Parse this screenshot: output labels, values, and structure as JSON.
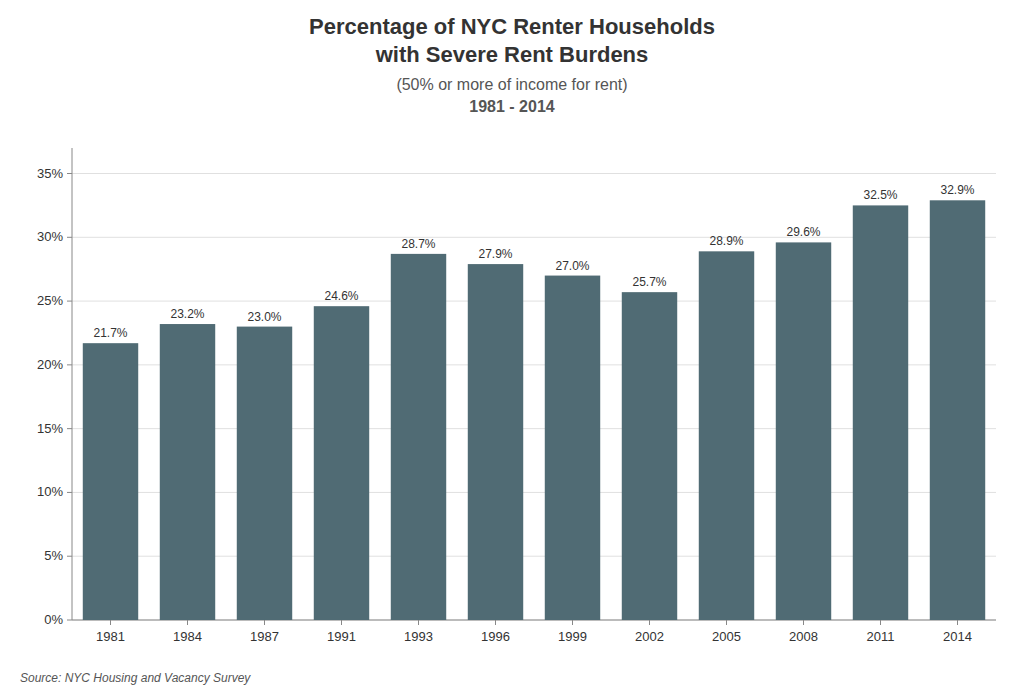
{
  "chart_data": {
    "type": "bar",
    "title": [
      "Percentage of NYC Renter Households",
      "with Severe Rent Burdens"
    ],
    "subtitle": [
      "(50% or more of income for rent)",
      "1981 - 2014"
    ],
    "annotations": [
      "Source:  NYC Housing and Vacancy Survey"
    ],
    "categories": [
      "1981",
      "1984",
      "1987",
      "1991",
      "1993",
      "1996",
      "1999",
      "2002",
      "2005",
      "2008",
      "2011",
      "2014"
    ],
    "values": [
      21.7,
      23.2,
      23.0,
      24.6,
      28.7,
      27.9,
      27.0,
      25.7,
      28.9,
      29.6,
      32.5,
      32.9
    ],
    "value_labels": [
      "21.7%",
      "23.2%",
      "23.0%",
      "24.6%",
      "28.7%",
      "27.9%",
      "27.0%",
      "25.7%",
      "28.9%",
      "29.6%",
      "32.5%",
      "32.9%"
    ],
    "data_labels": true,
    "color": "#506b74",
    "ylim": [
      0,
      37
    ],
    "yticks": [
      {
        "value": 0,
        "label": "0%"
      },
      {
        "value": 5,
        "label": "5%"
      },
      {
        "value": 10,
        "label": "10%"
      },
      {
        "value": 15,
        "label": "15%"
      },
      {
        "value": 20,
        "label": "20%"
      },
      {
        "value": 25,
        "label": "25%"
      },
      {
        "value": 30,
        "label": "30%"
      },
      {
        "value": 35,
        "label": "35%"
      }
    ],
    "grid": true
  }
}
